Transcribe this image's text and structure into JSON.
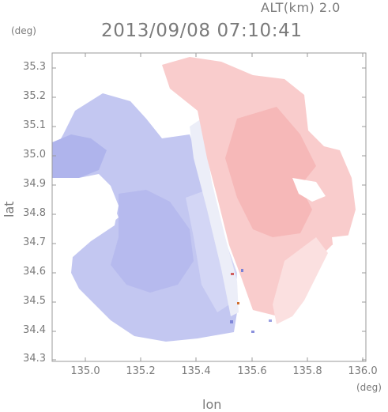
{
  "header": {
    "altitude": "ALT(km) 2.0",
    "timestamp": "2013/09/08 07:10:41"
  },
  "axes": {
    "y_unit": "(deg)",
    "x_unit": "(deg)",
    "y_label": "lat",
    "x_label": "lon",
    "y_ticks": [
      "35.3",
      "35.2",
      "35.1",
      "35.0",
      "34.9",
      "34.8",
      "34.7",
      "34.6",
      "34.5",
      "34.4",
      "34.3"
    ],
    "x_ticks": [
      "135.0",
      "135.2",
      "135.4",
      "135.6",
      "135.8",
      "136.0"
    ]
  },
  "map_data": {
    "lon_range": [
      134.88,
      136.18
    ],
    "lat_range": [
      34.27,
      35.35
    ],
    "colors": {
      "negative": "#b4b8ee",
      "negative_light": "#d6d8f5",
      "neutral": "#eef0f8",
      "positive_light": "#fbd6d6",
      "positive": "#f7b9b9",
      "frame": "#9a9a9a"
    }
  }
}
